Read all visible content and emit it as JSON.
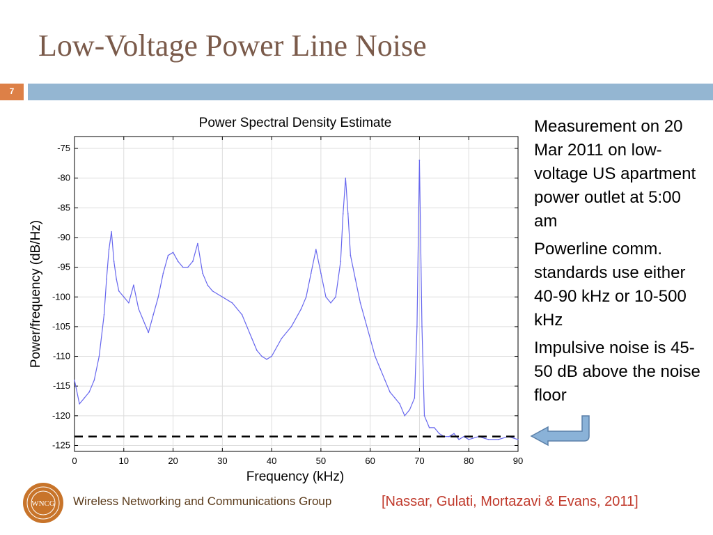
{
  "slide": {
    "title": "Low-Voltage Power Line Noise",
    "number": "7",
    "bullets": [
      "Measurement on 20 Mar 2011 on low-voltage US apartment power outlet at 5:00 am",
      "Powerline comm. standards use either 40-90 kHz or 10-500 kHz",
      "Impulsive noise is 45-50 dB above the noise floor"
    ],
    "footer_org": "Wireless Networking and Communications Group",
    "footer_citation": "[Nassar, Gulati, Mortazavi & Evans, 2011]",
    "logo_text": "WNCG"
  },
  "colors": {
    "title": "#7a5a4a",
    "slide_number_bg": "#dd8047",
    "header_bar": "#94b6d2",
    "series": "#6666ee",
    "citation": "#c0392b",
    "logo": "#c8742a",
    "arrow": "#8ab2d8"
  },
  "chart_data": {
    "type": "line",
    "title": "Power Spectral Density Estimate",
    "xlabel": "Frequency (kHz)",
    "ylabel": "Power/frequency (dB/Hz)",
    "xlim": [
      0,
      90
    ],
    "ylim": [
      -126,
      -73
    ],
    "xticks": [
      0,
      10,
      20,
      30,
      40,
      50,
      60,
      70,
      80,
      90
    ],
    "yticks": [
      -75,
      -80,
      -85,
      -90,
      -95,
      -100,
      -105,
      -110,
      -115,
      -120,
      -125
    ],
    "grid": true,
    "noise_floor": -123.5,
    "series": [
      {
        "x": [
          0,
          1,
          2,
          3,
          4,
          5,
          6,
          6.5,
          7,
          7.5,
          8,
          8.5,
          9,
          10,
          11,
          12,
          13,
          14,
          15,
          16,
          17,
          18,
          19,
          20,
          21,
          22,
          23,
          24,
          25,
          26,
          27,
          28,
          30,
          32,
          34,
          36,
          37,
          38,
          39,
          40,
          42,
          44,
          46,
          47,
          48,
          49,
          50,
          51,
          52,
          53,
          54,
          54.5,
          55,
          55.5,
          56,
          57,
          58,
          59,
          60,
          61,
          62,
          63,
          64,
          65,
          66,
          67,
          68,
          69,
          69.5,
          70,
          70.5,
          71,
          72,
          73,
          74,
          75,
          76,
          77,
          78,
          79,
          80,
          82,
          84,
          86,
          88,
          90
        ],
        "y": [
          -114,
          -118,
          -117,
          -116,
          -114,
          -110,
          -103,
          -97,
          -92,
          -89,
          -94,
          -97,
          -99,
          -100,
          -101,
          -98,
          -102,
          -104,
          -106,
          -103,
          -100,
          -96,
          -93,
          -92.5,
          -94,
          -95,
          -95,
          -94,
          -91,
          -96,
          -98,
          -99,
          -100,
          -101,
          -103,
          -107,
          -109,
          -110,
          -110.5,
          -110,
          -107,
          -105,
          -102,
          -100,
          -96,
          -92,
          -96,
          -100,
          -101,
          -100,
          -94,
          -86,
          -80,
          -86,
          -93,
          -97,
          -101,
          -104,
          -107,
          -110,
          -112,
          -114,
          -116,
          -117,
          -118,
          -120,
          -119,
          -117,
          -105,
          -77,
          -105,
          -120,
          -122,
          -122,
          -123,
          -123.5,
          -123.5,
          -123,
          -124,
          -123.5,
          -124,
          -123.5,
          -124,
          -124,
          -123.5,
          -124
        ]
      }
    ]
  }
}
